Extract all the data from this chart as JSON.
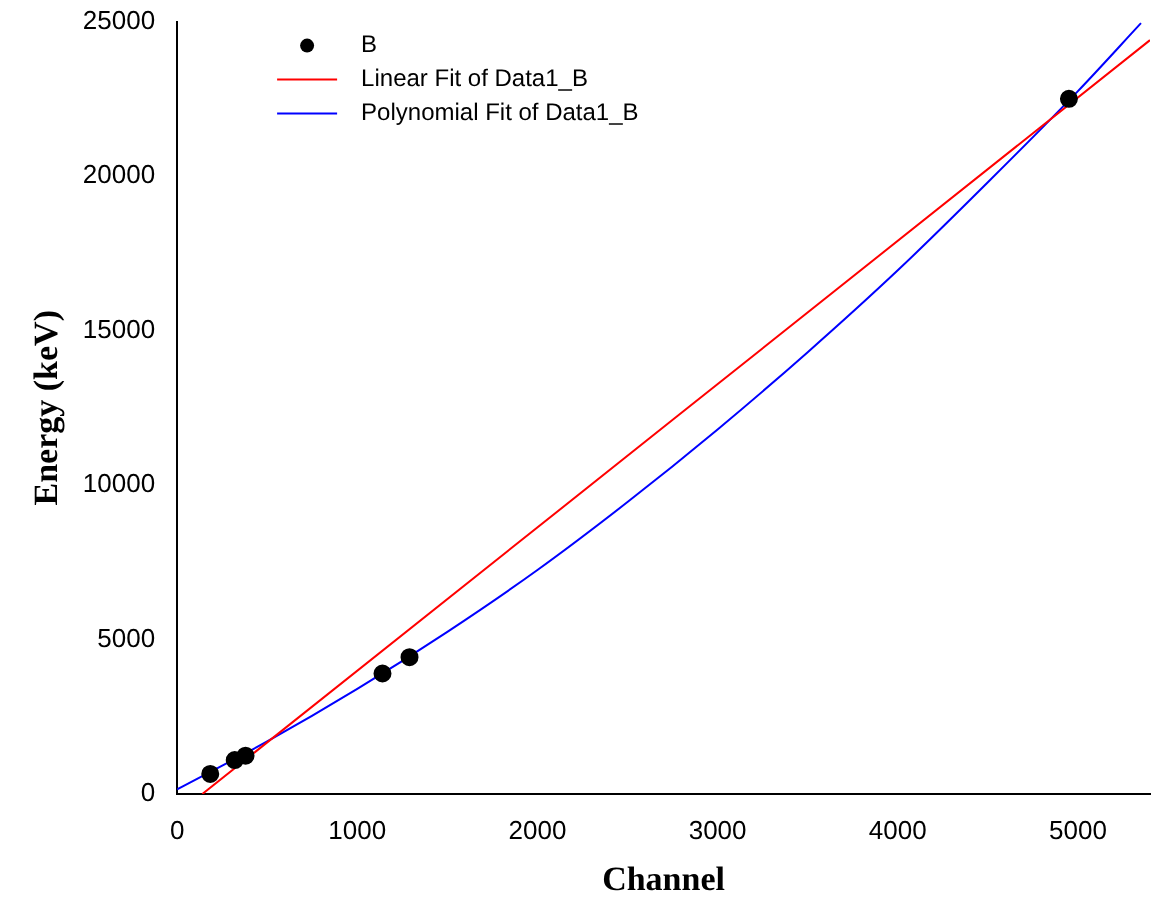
{
  "chart_data": {
    "type": "scatter",
    "xlabel": "Channel",
    "ylabel": "Energy (keV)",
    "xlim": [
      0,
      5400
    ],
    "xticks": [
      0,
      1000,
      2000,
      3000,
      4000,
      5000
    ],
    "ylim": [
      0,
      25000
    ],
    "yticks": [
      0,
      5000,
      10000,
      15000,
      20000,
      25000
    ],
    "grid": false,
    "legend": "top left",
    "series": [
      {
        "name": "B",
        "type": "scatter",
        "color": "#000000",
        "marker": "circle",
        "x": [
          184,
          320,
          380,
          1140,
          1290,
          4950
        ],
        "values": [
          650,
          1100,
          1240,
          3900,
          4430,
          22500
        ]
      },
      {
        "name": "Linear Fit of Data1_B",
        "type": "line",
        "color": "#ff0000",
        "marker": "none",
        "x": [
          140,
          5400
        ],
        "values": [
          0,
          24400
        ]
      },
      {
        "name": "Polynomial Fit of Data1_B",
        "type": "line",
        "color": "#0000ff",
        "marker": "none",
        "x": [
          0,
          500,
          1000,
          1500,
          2000,
          2500,
          3000,
          3500,
          4000,
          4500,
          5000,
          5350
        ],
        "values": [
          150,
          1700,
          3400,
          5250,
          7250,
          9450,
          11800,
          14300,
          16950,
          19800,
          22750,
          24950
        ]
      }
    ]
  }
}
